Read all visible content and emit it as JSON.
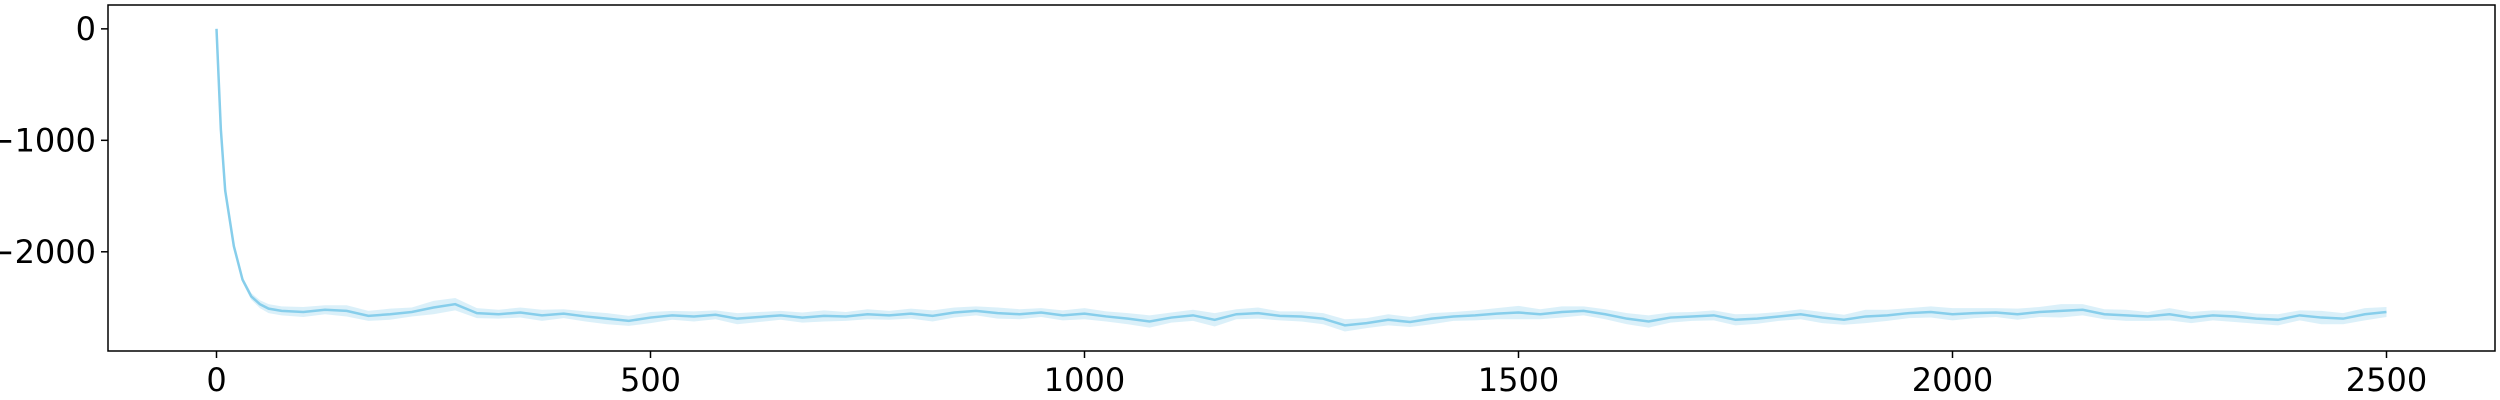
{
  "chart_data": {
    "type": "line",
    "x": [
      0,
      5,
      10,
      20,
      30,
      40,
      50,
      60,
      75,
      100,
      125,
      150,
      175,
      200,
      225,
      250,
      275,
      300,
      325,
      350,
      375,
      400,
      425,
      450,
      475,
      500,
      525,
      550,
      575,
      600,
      625,
      650,
      675,
      700,
      725,
      750,
      775,
      800,
      825,
      850,
      875,
      900,
      925,
      950,
      975,
      1000,
      1025,
      1050,
      1075,
      1100,
      1125,
      1150,
      1175,
      1200,
      1225,
      1250,
      1275,
      1300,
      1325,
      1350,
      1375,
      1400,
      1425,
      1450,
      1475,
      1500,
      1525,
      1550,
      1575,
      1600,
      1625,
      1650,
      1675,
      1700,
      1725,
      1750,
      1775,
      1800,
      1825,
      1850,
      1875,
      1900,
      1925,
      1950,
      1975,
      2000,
      2025,
      2050,
      2075,
      2100,
      2125,
      2150,
      2175,
      2200,
      2225,
      2250,
      2275,
      2300,
      2325,
      2350,
      2375,
      2400,
      2425,
      2450,
      2475,
      2500
    ],
    "series": [
      {
        "color": "#87ceeb",
        "values": [
          0,
          -900,
          -1450,
          -1950,
          -2250,
          -2400,
          -2470,
          -2510,
          -2530,
          -2540,
          -2520,
          -2530,
          -2575,
          -2560,
          -2540,
          -2500,
          -2470,
          -2550,
          -2560,
          -2545,
          -2570,
          -2555,
          -2580,
          -2600,
          -2620,
          -2590,
          -2570,
          -2580,
          -2565,
          -2600,
          -2585,
          -2570,
          -2590,
          -2575,
          -2580,
          -2560,
          -2570,
          -2555,
          -2575,
          -2545,
          -2530,
          -2550,
          -2560,
          -2545,
          -2570,
          -2555,
          -2580,
          -2600,
          -2625,
          -2590,
          -2570,
          -2610,
          -2560,
          -2550,
          -2575,
          -2580,
          -2600,
          -2660,
          -2640,
          -2610,
          -2630,
          -2600,
          -2580,
          -2570,
          -2555,
          -2545,
          -2560,
          -2540,
          -2530,
          -2560,
          -2600,
          -2625,
          -2590,
          -2580,
          -2570,
          -2610,
          -2600,
          -2580,
          -2560,
          -2590,
          -2610,
          -2580,
          -2570,
          -2550,
          -2540,
          -2560,
          -2550,
          -2545,
          -2560,
          -2540,
          -2530,
          -2520,
          -2560,
          -2570,
          -2580,
          -2560,
          -2590,
          -2570,
          -2580,
          -2600,
          -2610,
          -2570,
          -2590,
          -2600,
          -2560,
          -2540
        ],
        "spread": [
          0,
          10,
          15,
          20,
          25,
          30,
          35,
          40,
          40,
          45,
          40,
          50,
          45,
          50,
          40,
          60,
          55,
          45,
          40,
          45,
          50,
          40,
          45,
          50,
          45,
          50,
          40,
          45,
          40,
          50,
          45,
          40,
          45,
          50,
          40,
          45,
          40,
          45,
          50,
          45,
          40,
          50,
          45,
          40,
          45,
          50,
          45,
          50,
          55,
          45,
          50,
          60,
          45,
          50,
          40,
          45,
          50,
          55,
          45,
          50,
          45,
          50,
          40,
          45,
          50,
          60,
          45,
          50,
          40,
          45,
          50,
          55,
          45,
          40,
          45,
          50,
          45,
          40,
          45,
          50,
          45,
          60,
          50,
          45,
          50,
          55,
          45,
          40,
          50,
          45,
          60,
          50,
          45,
          50,
          40,
          55,
          50,
          45,
          50,
          45,
          50,
          45,
          60,
          50,
          55,
          45
        ]
      }
    ],
    "xlim": [
      -125,
      2625
    ],
    "ylim": [
      -2890,
      214
    ],
    "xticks": [
      0,
      500,
      1000,
      1500,
      2000,
      2500
    ],
    "yticks": [
      {
        "value": -2000,
        "label": "−2000"
      },
      {
        "value": -1000,
        "label": "−1000"
      },
      0
    ]
  }
}
